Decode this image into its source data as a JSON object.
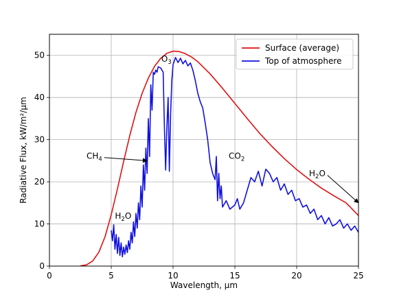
{
  "chart_data": {
    "type": "line",
    "title": "",
    "xlabel": "Wavelength, μm",
    "ylabel": "Radiative Flux, kW/m²/μm",
    "xlim": [
      0,
      25
    ],
    "ylim": [
      0,
      55
    ],
    "xticks": [
      0,
      5,
      10,
      15,
      20,
      25
    ],
    "yticks": [
      0,
      10,
      20,
      30,
      40,
      50
    ],
    "grid": true,
    "legend_placement": "top-right",
    "series": [
      {
        "name": "Surface (average)",
        "color": "#e01010",
        "x": [
          2.5,
          3.0,
          3.5,
          4.0,
          4.5,
          5.0,
          5.5,
          6.0,
          6.5,
          7.0,
          7.5,
          8.0,
          8.5,
          9.0,
          9.5,
          10.0,
          10.5,
          11.0,
          11.5,
          12.0,
          13.0,
          14.0,
          15.0,
          16.0,
          17.0,
          18.0,
          19.0,
          20.0,
          21.0,
          22.0,
          23.0,
          24.0,
          25.0
        ],
        "y": [
          0.05,
          0.3,
          1.2,
          3.3,
          7.0,
          12.2,
          18.3,
          24.8,
          31.0,
          36.5,
          41.0,
          44.6,
          47.4,
          49.3,
          50.5,
          51.0,
          50.9,
          50.4,
          49.6,
          48.5,
          45.6,
          42.2,
          38.6,
          35.0,
          31.5,
          28.4,
          25.5,
          22.9,
          20.6,
          18.5,
          16.7,
          15.0,
          12.0
        ]
      },
      {
        "name": "Top of atmosphere",
        "color": "#1010e0",
        "x": [
          5.0,
          5.1,
          5.2,
          5.3,
          5.4,
          5.5,
          5.6,
          5.7,
          5.8,
          5.9,
          6.0,
          6.1,
          6.2,
          6.3,
          6.4,
          6.5,
          6.6,
          6.7,
          6.8,
          6.9,
          7.0,
          7.1,
          7.2,
          7.3,
          7.4,
          7.5,
          7.6,
          7.7,
          7.8,
          7.9,
          8.0,
          8.1,
          8.2,
          8.3,
          8.4,
          8.5,
          8.6,
          8.7,
          8.8,
          9.0,
          9.2,
          9.3,
          9.4,
          9.5,
          9.6,
          9.7,
          9.8,
          9.9,
          10.0,
          10.2,
          10.4,
          10.6,
          10.8,
          11.0,
          11.2,
          11.4,
          11.6,
          11.8,
          12.0,
          12.2,
          12.4,
          12.6,
          12.8,
          13.0,
          13.2,
          13.4,
          13.5,
          13.6,
          13.7,
          13.8,
          13.9,
          14.0,
          14.3,
          14.6,
          15.0,
          15.2,
          15.4,
          15.7,
          16.0,
          16.3,
          16.6,
          16.9,
          17.2,
          17.5,
          17.8,
          18.1,
          18.4,
          18.7,
          19.0,
          19.3,
          19.6,
          19.9,
          20.2,
          20.5,
          20.8,
          21.1,
          21.4,
          21.7,
          22.0,
          22.3,
          22.6,
          22.9,
          23.2,
          23.5,
          23.8,
          24.1,
          24.4,
          24.7,
          25.0
        ],
        "y": [
          8.5,
          6.0,
          9.8,
          4.0,
          7.5,
          3.0,
          6.8,
          2.5,
          5.5,
          2.2,
          4.5,
          2.8,
          5.0,
          3.2,
          6.0,
          4.0,
          8.0,
          5.5,
          10.5,
          7.0,
          12.5,
          9.0,
          15.0,
          11.0,
          19.0,
          14.0,
          24.0,
          18.0,
          28.0,
          22.0,
          35.0,
          26.0,
          43.0,
          37.0,
          46.0,
          45.5,
          46.5,
          46.0,
          47.3,
          47.0,
          46.0,
          33.0,
          22.8,
          33.0,
          40.0,
          22.5,
          36.0,
          44.0,
          47.8,
          49.5,
          48.3,
          49.3,
          48.0,
          48.8,
          47.5,
          48.2,
          46.5,
          44.0,
          41.0,
          39.0,
          37.5,
          34.0,
          30.0,
          24.5,
          22.0,
          20.5,
          26.0,
          15.5,
          22.0,
          16.0,
          19.0,
          14.0,
          15.5,
          13.5,
          14.5,
          16.0,
          13.5,
          15.0,
          18.0,
          21.0,
          20.0,
          22.5,
          19.0,
          23.0,
          22.0,
          20.0,
          21.0,
          18.0,
          19.5,
          17.0,
          18.0,
          15.5,
          16.0,
          14.0,
          14.5,
          12.5,
          13.5,
          11.0,
          12.0,
          10.0,
          11.5,
          9.5,
          10.0,
          11.0,
          9.0,
          10.0,
          8.5,
          9.5,
          8.0
        ]
      }
    ],
    "annotations": [
      {
        "text": "O",
        "sub": "3",
        "x": 9.05,
        "y": 48.5
      },
      {
        "text": "CH",
        "sub": "4",
        "x": 3.0,
        "y": 25.5,
        "arrow_to": [
          7.9,
          25.0
        ]
      },
      {
        "text": "CO",
        "sub": "2",
        "x": 14.5,
        "y": 25.5
      },
      {
        "text": "H",
        "sub": "2",
        "tail": "O",
        "x": 21.0,
        "y": 21.3,
        "arrow_to": [
          25.0,
          15.0
        ]
      },
      {
        "text": "H",
        "sub": "2",
        "tail": "O",
        "x": 5.3,
        "y": 11.2
      }
    ]
  }
}
